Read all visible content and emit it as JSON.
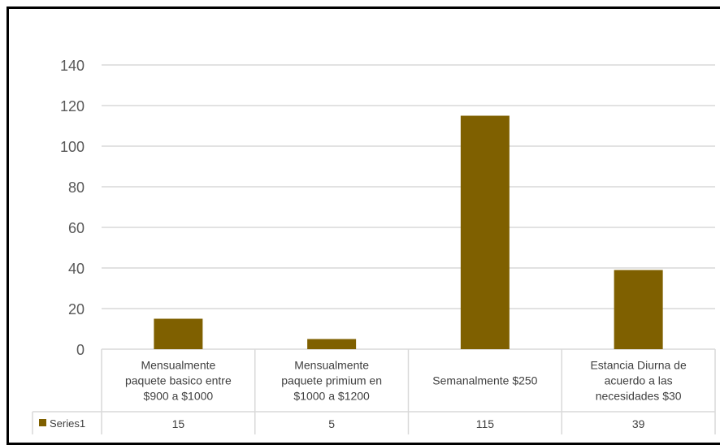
{
  "chart_data": {
    "type": "bar",
    "categories": [
      [
        "Mensualmente",
        "paquete basico entre",
        "$900 a $1000"
      ],
      [
        "Mensualmente",
        "paquete primium en",
        "$1000 a $1200"
      ],
      [
        "Semanalmente $250"
      ],
      [
        "Estancia Diurna de",
        "acuerdo a las",
        "necesidades $30"
      ]
    ],
    "series": [
      {
        "name": "Series1",
        "values": [
          15,
          5,
          115,
          39
        ],
        "color": "#7f6000"
      }
    ],
    "ylim": [
      0,
      140
    ],
    "yticks": [
      "0",
      "20",
      "40",
      "60",
      "80",
      "100",
      "120",
      "140"
    ],
    "grid": true,
    "legend_placement": "data-table",
    "data_table": true,
    "gridline_color": "#d9d9d9",
    "text_color": "#404040"
  }
}
